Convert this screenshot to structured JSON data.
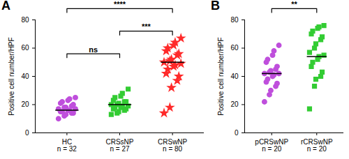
{
  "chart_data": [
    {
      "type": "scatter",
      "title": "A",
      "y_label": "Positive cell number/HPF",
      "categories": [
        "HC\nn = 32",
        "CRSsNP\nn = 27",
        "CRSwNP\nn = 80"
      ],
      "groups": [
        {
          "color": "#bf4fdc",
          "marker": "circle",
          "mean": 16,
          "values": [
            10,
            12,
            13,
            14,
            14,
            15,
            15,
            16,
            16,
            17,
            17,
            18,
            18,
            19,
            20,
            21,
            22,
            23,
            24,
            25
          ]
        },
        {
          "color": "#33cc33",
          "marker": "square",
          "mean": 20,
          "values": [
            13,
            14,
            15,
            16,
            17,
            17,
            18,
            18,
            19,
            19,
            20,
            20,
            21,
            22,
            22,
            23,
            25,
            26,
            28,
            31
          ]
        },
        {
          "color": "#ff2a2a",
          "marker": "star",
          "mean": 50,
          "values": [
            14,
            18,
            32,
            37,
            40,
            42,
            45,
            47,
            48,
            49,
            50,
            51,
            52,
            55,
            56,
            58,
            60,
            62,
            64,
            67
          ]
        }
      ],
      "comparisons": [
        {
          "groups": [
            0,
            1
          ],
          "label": "ns"
        },
        {
          "groups": [
            1,
            2
          ],
          "label": "***"
        },
        {
          "groups": [
            0,
            2
          ],
          "label": "****"
        }
      ],
      "ylim": [
        0,
        80
      ],
      "yticks": [
        0,
        20,
        40,
        60,
        80
      ]
    },
    {
      "type": "scatter",
      "title": "B",
      "y_label": "Positive cell number/HPF",
      "categories": [
        "pCRSwNP\nn = 20",
        "rCRSwNP\nn = 20"
      ],
      "groups": [
        {
          "color": "#bf4fdc",
          "marker": "circle",
          "mean": 42,
          "values": [
            22,
            27,
            30,
            33,
            35,
            36,
            38,
            40,
            41,
            42,
            42,
            43,
            44,
            45,
            47,
            50,
            52,
            55,
            58,
            62
          ]
        },
        {
          "color": "#33cc33",
          "marker": "square",
          "mean": 54,
          "values": [
            17,
            33,
            38,
            40,
            43,
            47,
            50,
            52,
            54,
            55,
            57,
            60,
            63,
            66,
            68,
            70,
            72,
            74,
            75,
            76
          ]
        }
      ],
      "comparisons": [
        {
          "groups": [
            0,
            1
          ],
          "label": "**"
        }
      ],
      "ylim": [
        0,
        80
      ],
      "yticks": [
        0,
        20,
        40,
        60,
        80
      ]
    }
  ]
}
